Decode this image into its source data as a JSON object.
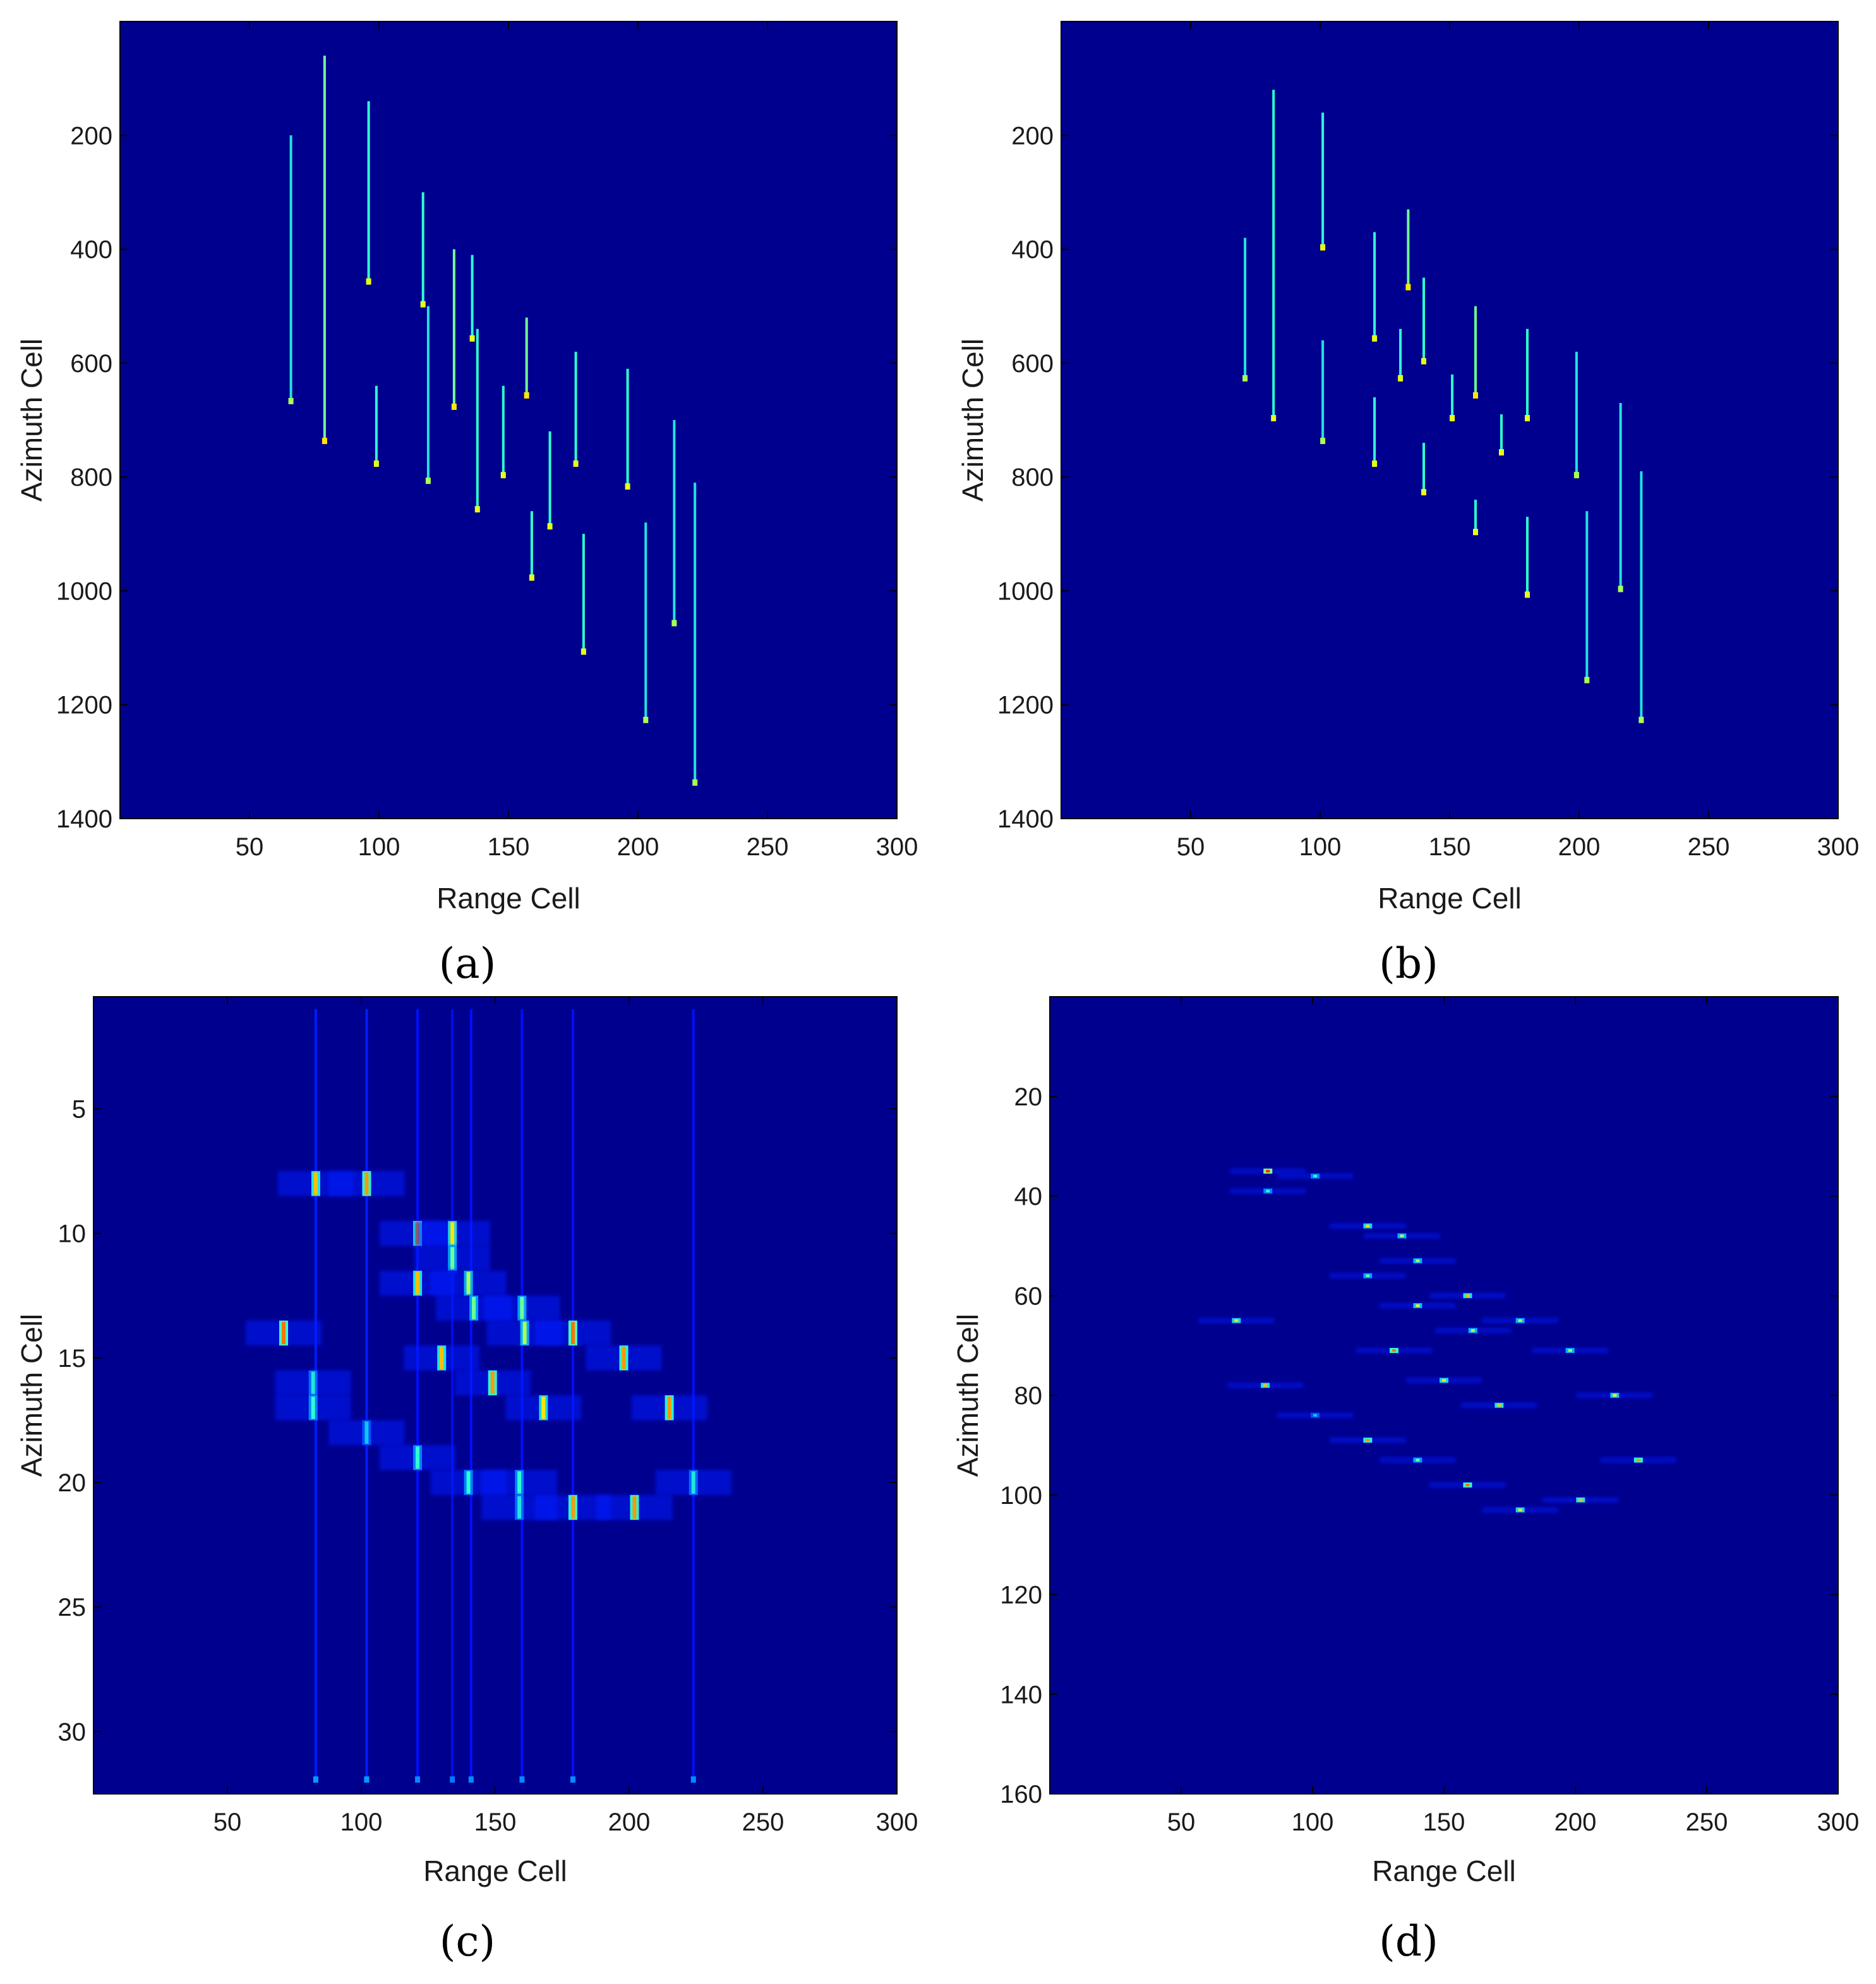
{
  "colors": {
    "background": "#00008F",
    "colormap": [
      "#00008F",
      "#0010FF",
      "#00A0FF",
      "#30FFD0",
      "#FFFF00",
      "#FF8000",
      "#FF0000"
    ]
  },
  "chart_data": [
    {
      "type": "heatmap",
      "caption": "(a)",
      "xlabel": "Range Cell",
      "ylabel": "Azimuth  Cell",
      "xlim": [
        0,
        300
      ],
      "ylim": [
        0,
        1400
      ],
      "y_reversed": true,
      "xticks": [
        50,
        100,
        150,
        200,
        250,
        300
      ],
      "yticks": [
        200,
        400,
        600,
        800,
        1000,
        1200,
        1400
      ],
      "streaks": [
        {
          "x": 66,
          "y_start": 200,
          "y_end": 670,
          "peak": 0.45
        },
        {
          "x": 79,
          "y_start": 60,
          "y_end": 740,
          "peak": 0.55
        },
        {
          "x": 96,
          "y_start": 140,
          "y_end": 460,
          "peak": 0.5
        },
        {
          "x": 99,
          "y_start": 640,
          "y_end": 780,
          "peak": 0.5
        },
        {
          "x": 117,
          "y_start": 300,
          "y_end": 500,
          "peak": 0.5
        },
        {
          "x": 119,
          "y_start": 500,
          "y_end": 810,
          "peak": 0.45
        },
        {
          "x": 129,
          "y_start": 400,
          "y_end": 680,
          "peak": 0.55
        },
        {
          "x": 136,
          "y_start": 410,
          "y_end": 560,
          "peak": 0.5
        },
        {
          "x": 138,
          "y_start": 540,
          "y_end": 860,
          "peak": 0.5
        },
        {
          "x": 148,
          "y_start": 640,
          "y_end": 800,
          "peak": 0.5
        },
        {
          "x": 157,
          "y_start": 520,
          "y_end": 660,
          "peak": 0.55
        },
        {
          "x": 159,
          "y_start": 860,
          "y_end": 980,
          "peak": 0.5
        },
        {
          "x": 166,
          "y_start": 720,
          "y_end": 890,
          "peak": 0.5
        },
        {
          "x": 176,
          "y_start": 580,
          "y_end": 780,
          "peak": 0.5
        },
        {
          "x": 179,
          "y_start": 900,
          "y_end": 1110,
          "peak": 0.5
        },
        {
          "x": 196,
          "y_start": 610,
          "y_end": 820,
          "peak": 0.5
        },
        {
          "x": 203,
          "y_start": 880,
          "y_end": 1230,
          "peak": 0.45
        },
        {
          "x": 214,
          "y_start": 700,
          "y_end": 1060,
          "peak": 0.45
        },
        {
          "x": 222,
          "y_start": 810,
          "y_end": 1340,
          "peak": 0.45
        }
      ]
    },
    {
      "type": "heatmap",
      "caption": "(b)",
      "xlabel": "Range Cell",
      "ylabel": "Azimuth  Cell",
      "xlim": [
        0,
        300
      ],
      "ylim": [
        0,
        1400
      ],
      "y_reversed": true,
      "xticks": [
        50,
        100,
        150,
        200,
        250,
        300
      ],
      "yticks": [
        200,
        400,
        600,
        800,
        1000,
        1200,
        1400
      ],
      "streaks": [
        {
          "x": 71,
          "y_start": 380,
          "y_end": 630,
          "peak": 0.45
        },
        {
          "x": 82,
          "y_start": 120,
          "y_end": 700,
          "peak": 0.5
        },
        {
          "x": 101,
          "y_start": 160,
          "y_end": 400,
          "peak": 0.5
        },
        {
          "x": 101,
          "y_start": 560,
          "y_end": 740,
          "peak": 0.45
        },
        {
          "x": 121,
          "y_start": 370,
          "y_end": 560,
          "peak": 0.5
        },
        {
          "x": 121,
          "y_start": 660,
          "y_end": 780,
          "peak": 0.5
        },
        {
          "x": 131,
          "y_start": 540,
          "y_end": 630,
          "peak": 0.5
        },
        {
          "x": 134,
          "y_start": 330,
          "y_end": 470,
          "peak": 0.55
        },
        {
          "x": 140,
          "y_start": 450,
          "y_end": 600,
          "peak": 0.5
        },
        {
          "x": 140,
          "y_start": 740,
          "y_end": 830,
          "peak": 0.5
        },
        {
          "x": 151,
          "y_start": 620,
          "y_end": 700,
          "peak": 0.5
        },
        {
          "x": 160,
          "y_start": 500,
          "y_end": 660,
          "peak": 0.55
        },
        {
          "x": 160,
          "y_start": 840,
          "y_end": 900,
          "peak": 0.5
        },
        {
          "x": 170,
          "y_start": 690,
          "y_end": 760,
          "peak": 0.5
        },
        {
          "x": 180,
          "y_start": 540,
          "y_end": 700,
          "peak": 0.5
        },
        {
          "x": 180,
          "y_start": 870,
          "y_end": 1010,
          "peak": 0.5
        },
        {
          "x": 199,
          "y_start": 580,
          "y_end": 800,
          "peak": 0.45
        },
        {
          "x": 203,
          "y_start": 860,
          "y_end": 1160,
          "peak": 0.45
        },
        {
          "x": 216,
          "y_start": 670,
          "y_end": 1000,
          "peak": 0.45
        },
        {
          "x": 224,
          "y_start": 790,
          "y_end": 1230,
          "peak": 0.45
        }
      ]
    },
    {
      "type": "heatmap",
      "caption": "(c)",
      "xlabel": "Range Cell",
      "ylabel": "Azimuth  Cell",
      "xlim": [
        0,
        300
      ],
      "ylim": [
        0.5,
        32.5
      ],
      "y_reversed": true,
      "xticks": [
        50,
        100,
        150,
        200,
        250,
        300
      ],
      "yticks": [
        5,
        10,
        15,
        20,
        25,
        30
      ],
      "blobs": [
        {
          "x": 83,
          "y": 8,
          "value": 0.75
        },
        {
          "x": 102,
          "y": 8,
          "value": 0.8
        },
        {
          "x": 121,
          "y": 10,
          "value": 0.8
        },
        {
          "x": 134,
          "y": 10,
          "value": 0.7
        },
        {
          "x": 134,
          "y": 11,
          "value": 0.55
        },
        {
          "x": 121,
          "y": 12,
          "value": 0.75
        },
        {
          "x": 140,
          "y": 12,
          "value": 0.6
        },
        {
          "x": 142,
          "y": 13,
          "value": 0.55
        },
        {
          "x": 160,
          "y": 13,
          "value": 0.55
        },
        {
          "x": 71,
          "y": 14,
          "value": 0.85
        },
        {
          "x": 161,
          "y": 14,
          "value": 0.6
        },
        {
          "x": 179,
          "y": 14,
          "value": 0.85
        },
        {
          "x": 130,
          "y": 15,
          "value": 0.75
        },
        {
          "x": 198,
          "y": 15,
          "value": 0.8
        },
        {
          "x": 149,
          "y": 16,
          "value": 0.8
        },
        {
          "x": 82,
          "y": 16,
          "value": 0.45
        },
        {
          "x": 82,
          "y": 17,
          "value": 0.5
        },
        {
          "x": 168,
          "y": 17,
          "value": 0.7
        },
        {
          "x": 215,
          "y": 17,
          "value": 0.8
        },
        {
          "x": 102,
          "y": 18,
          "value": 0.4
        },
        {
          "x": 121,
          "y": 19,
          "value": 0.5
        },
        {
          "x": 140,
          "y": 20,
          "value": 0.5
        },
        {
          "x": 159,
          "y": 20,
          "value": 0.5
        },
        {
          "x": 224,
          "y": 20,
          "value": 0.45
        },
        {
          "x": 159,
          "y": 21,
          "value": 0.45
        },
        {
          "x": 179,
          "y": 21,
          "value": 0.8
        },
        {
          "x": 202,
          "y": 21,
          "value": 0.8
        }
      ],
      "streaks": [
        {
          "x": 83,
          "y_start": 1,
          "y_end": 32,
          "peak": 0.18
        },
        {
          "x": 102,
          "y_start": 1,
          "y_end": 32,
          "peak": 0.18
        },
        {
          "x": 121,
          "y_start": 1,
          "y_end": 32,
          "peak": 0.16
        },
        {
          "x": 134,
          "y_start": 1,
          "y_end": 32,
          "peak": 0.14
        },
        {
          "x": 141,
          "y_start": 1,
          "y_end": 32,
          "peak": 0.16
        },
        {
          "x": 160,
          "y_start": 1,
          "y_end": 32,
          "peak": 0.16
        },
        {
          "x": 179,
          "y_start": 1,
          "y_end": 32,
          "peak": 0.16
        },
        {
          "x": 224,
          "y_start": 1,
          "y_end": 32,
          "peak": 0.16
        }
      ]
    },
    {
      "type": "heatmap",
      "caption": "(d)",
      "xlabel": "Range Cell",
      "ylabel": "Azimuth  Cell",
      "xlim": [
        0,
        300
      ],
      "ylim": [
        0,
        160
      ],
      "y_reversed": true,
      "xticks": [
        50,
        100,
        150,
        200,
        250,
        300
      ],
      "yticks": [
        20,
        40,
        60,
        80,
        100,
        120,
        140,
        160
      ],
      "blobs": [
        {
          "x": 83,
          "y": 35,
          "value": 0.95
        },
        {
          "x": 83,
          "y": 39,
          "value": 0.5
        },
        {
          "x": 101,
          "y": 36,
          "value": 0.5
        },
        {
          "x": 121,
          "y": 46,
          "value": 0.7
        },
        {
          "x": 134,
          "y": 48,
          "value": 0.6
        },
        {
          "x": 140,
          "y": 53,
          "value": 0.6
        },
        {
          "x": 121,
          "y": 56,
          "value": 0.55
        },
        {
          "x": 140,
          "y": 62,
          "value": 0.65
        },
        {
          "x": 159,
          "y": 60,
          "value": 0.75
        },
        {
          "x": 71,
          "y": 65,
          "value": 0.7
        },
        {
          "x": 161,
          "y": 67,
          "value": 0.6
        },
        {
          "x": 179,
          "y": 65,
          "value": 0.6
        },
        {
          "x": 131,
          "y": 71,
          "value": 0.85
        },
        {
          "x": 198,
          "y": 71,
          "value": 0.6
        },
        {
          "x": 150,
          "y": 77,
          "value": 0.7
        },
        {
          "x": 82,
          "y": 78,
          "value": 0.75
        },
        {
          "x": 171,
          "y": 82,
          "value": 0.75
        },
        {
          "x": 215,
          "y": 80,
          "value": 0.65
        },
        {
          "x": 101,
          "y": 84,
          "value": 0.4
        },
        {
          "x": 121,
          "y": 89,
          "value": 0.8
        },
        {
          "x": 140,
          "y": 93,
          "value": 0.55
        },
        {
          "x": 224,
          "y": 93,
          "value": 0.8
        },
        {
          "x": 159,
          "y": 98,
          "value": 0.85
        },
        {
          "x": 202,
          "y": 101,
          "value": 0.75
        },
        {
          "x": 179,
          "y": 103,
          "value": 0.7
        }
      ]
    }
  ]
}
